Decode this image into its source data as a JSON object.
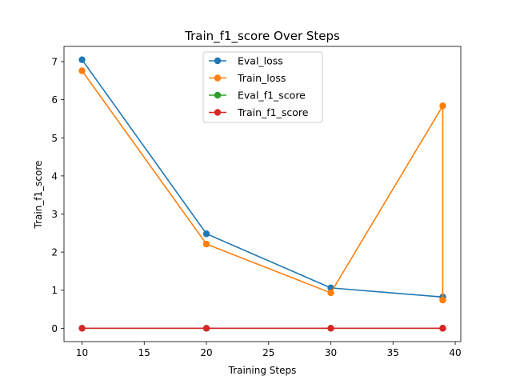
{
  "chart_data": {
    "type": "line",
    "title": "Train_f1_score Over Steps",
    "xlabel": "Training Steps",
    "ylabel": "Train_f1_score",
    "xlim": [
      8.55,
      40.45
    ],
    "ylim": [
      -0.35,
      7.4
    ],
    "xticks": [
      10,
      15,
      20,
      25,
      30,
      35,
      40
    ],
    "yticks": [
      0,
      1,
      2,
      3,
      4,
      5,
      6,
      7
    ],
    "grid": false,
    "legend_position": "top-center",
    "series": [
      {
        "name": "Eval_loss",
        "color": "#1f77b4",
        "x": [
          10,
          20,
          30,
          39,
          39
        ],
        "y": [
          7.05,
          2.48,
          1.06,
          0.82,
          0.82
        ]
      },
      {
        "name": "Train_loss",
        "color": "#ff7f0e",
        "x": [
          10,
          20,
          30,
          39,
          39
        ],
        "y": [
          6.76,
          2.21,
          0.93,
          5.84,
          0.74
        ]
      },
      {
        "name": "Eval_f1_score",
        "color": "#2ca02c",
        "x": [
          10,
          20,
          30,
          39,
          39
        ],
        "y": [
          0,
          0,
          0,
          0,
          0
        ]
      },
      {
        "name": "Train_f1_score",
        "color": "#d62728",
        "x": [
          10,
          20,
          30,
          39,
          39
        ],
        "y": [
          0,
          0,
          0,
          0,
          0
        ]
      }
    ]
  }
}
